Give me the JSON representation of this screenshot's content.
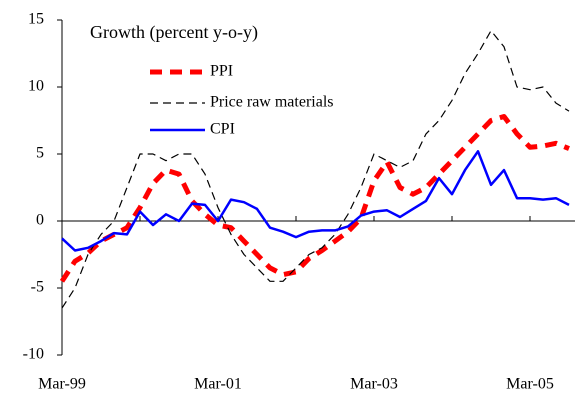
{
  "chart_data": {
    "type": "line",
    "title": "Growth (percent y-o-y)",
    "categories": [
      "Mar-99",
      null,
      null,
      null,
      null,
      null,
      null,
      null,
      null,
      null,
      null,
      null,
      "Mar-01",
      null,
      null,
      null,
      null,
      null,
      null,
      null,
      null,
      null,
      null,
      null,
      "Mar-03",
      null,
      null,
      null,
      null,
      null,
      null,
      null,
      null,
      null,
      null,
      null,
      "Mar-05",
      null,
      null,
      null
    ],
    "series": [
      {
        "name": "PPI",
        "color": "#ff0000",
        "values": [
          -4.5,
          -3.0,
          -2.4,
          -1.5,
          -1.0,
          -0.5,
          1.0,
          2.8,
          3.8,
          3.5,
          1.5,
          0.5,
          -0.3,
          -0.5,
          -1.5,
          -2.5,
          -3.5,
          -4.0,
          -3.8,
          -2.8,
          -2.2,
          -1.5,
          -0.8,
          0.2,
          3.0,
          4.4,
          2.5,
          2.0,
          2.5,
          3.5,
          4.5,
          5.5,
          6.5,
          7.5,
          7.8,
          6.5,
          5.5,
          5.6,
          5.8,
          5.4
        ]
      },
      {
        "name": "Price raw materials",
        "color": "#000000",
        "values": [
          -6.5,
          -5.0,
          -2.5,
          -1.0,
          0.0,
          2.5,
          5.0,
          5.0,
          4.5,
          5.0,
          5.0,
          3.5,
          1.0,
          -1.0,
          -2.5,
          -3.5,
          -4.5,
          -4.5,
          -3.5,
          -2.5,
          -2.0,
          -1.0,
          0.5,
          2.5,
          5.0,
          4.5,
          4.0,
          4.5,
          6.5,
          7.5,
          9.0,
          11.0,
          12.5,
          14.2,
          13.0,
          10.0,
          9.8,
          10.0,
          8.8,
          8.2
        ]
      },
      {
        "name": "CPI",
        "color": "#0000ff",
        "values": [
          -1.3,
          -2.2,
          -2.0,
          -1.5,
          -0.9,
          -1.0,
          0.7,
          -0.3,
          0.5,
          0.0,
          1.3,
          1.2,
          0.0,
          1.6,
          1.4,
          0.9,
          -0.5,
          -0.8,
          -1.2,
          -0.8,
          -0.7,
          -0.7,
          -0.4,
          0.4,
          0.7,
          0.8,
          0.3,
          0.9,
          1.5,
          3.2,
          2.0,
          3.8,
          5.2,
          2.7,
          3.8,
          1.7,
          1.7,
          1.6,
          1.7,
          1.2
        ]
      }
    ],
    "ylim": [
      -10,
      15
    ],
    "yticks": [
      -10,
      -5,
      0,
      5,
      10,
      15
    ]
  }
}
